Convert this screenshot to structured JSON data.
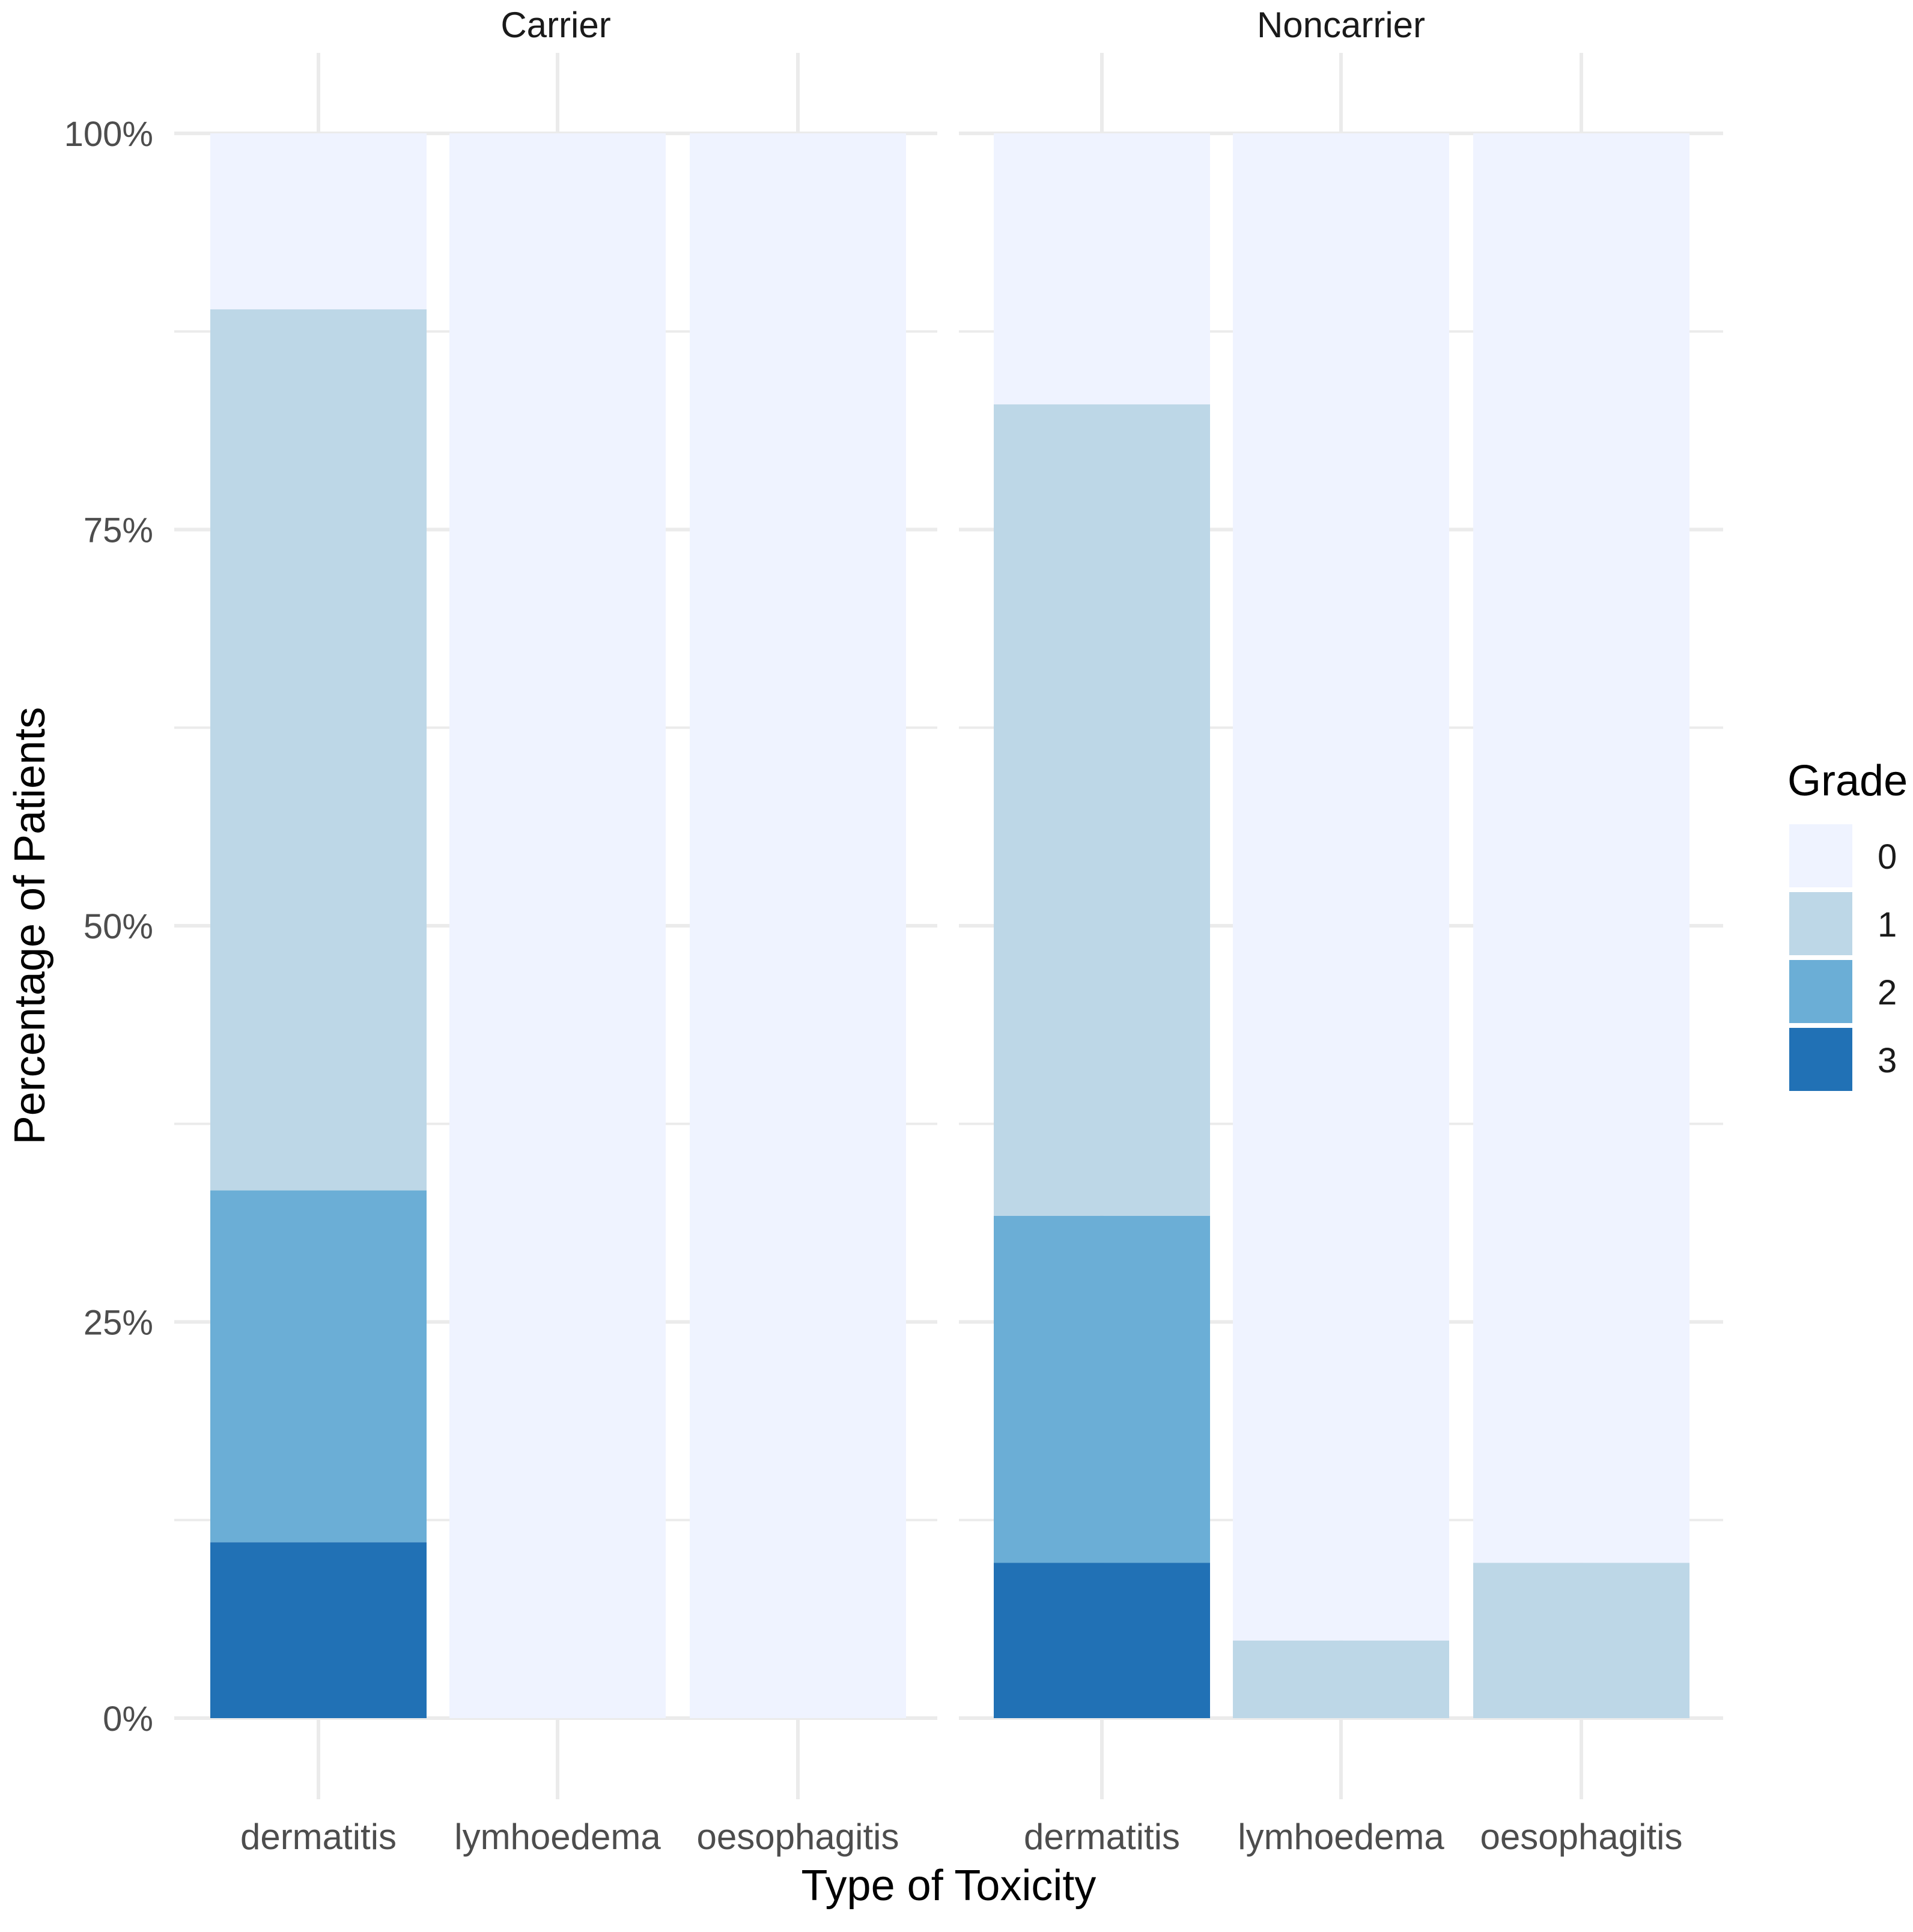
{
  "chart_data": {
    "type": "bar",
    "stacked": true,
    "xlabel": "Type of Toxicity",
    "ylabel": "Percentage of Patients",
    "ylim": [
      0,
      100
    ],
    "yticks": [
      0,
      25,
      50,
      75,
      100
    ],
    "yticklabels": [
      "0%",
      "25%",
      "50%",
      "75%",
      "100%"
    ],
    "categories": [
      "dermatitis",
      "lymhoedema",
      "oesophagitis"
    ],
    "legend": {
      "title": "Grade",
      "position": "right",
      "entries": [
        "0",
        "1",
        "2",
        "3"
      ]
    },
    "grade_colors": {
      "0": "#eff3ff",
      "1": "#bdd7e7",
      "2": "#6baed6",
      "3": "#2171b5"
    },
    "panels": [
      {
        "title": "Carrier",
        "bars": [
          {
            "category": "dermatitis",
            "segments": {
              "3": 11.1,
              "2": 22.2,
              "1": 55.6,
              "0": 11.1
            }
          },
          {
            "category": "lymhoedema",
            "segments": {
              "3": 0,
              "2": 0,
              "1": 0,
              "0": 100
            }
          },
          {
            "category": "oesophagitis",
            "segments": {
              "3": 0,
              "2": 0,
              "1": 0,
              "0": 100
            }
          }
        ]
      },
      {
        "title": "Noncarrier",
        "bars": [
          {
            "category": "dermatitis",
            "segments": {
              "3": 9.8,
              "2": 21.9,
              "1": 51.2,
              "0": 17.1
            }
          },
          {
            "category": "lymhoedema",
            "segments": {
              "3": 0,
              "2": 0,
              "1": 4.9,
              "0": 95.1
            }
          },
          {
            "category": "oesophagitis",
            "segments": {
              "3": 0,
              "2": 0,
              "1": 9.8,
              "0": 90.2
            }
          }
        ]
      }
    ]
  }
}
